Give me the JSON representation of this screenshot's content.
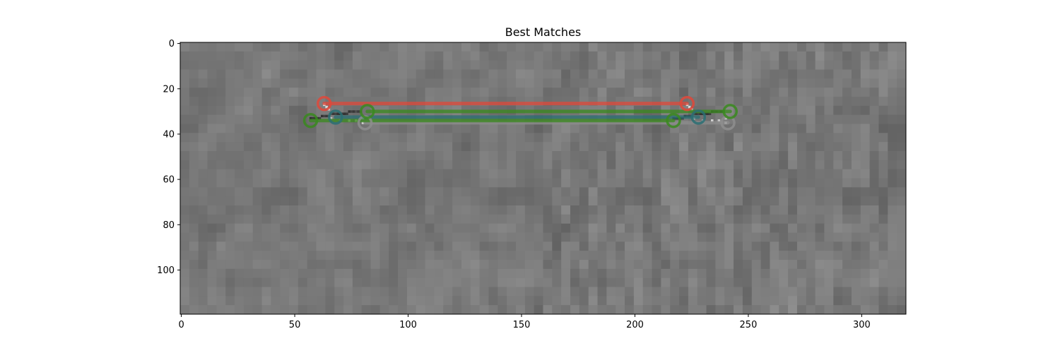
{
  "chart_data": {
    "type": "image",
    "title": "Best Matches",
    "xlabel": "",
    "ylabel": "",
    "xlim": [
      -0.5,
      319.5
    ],
    "ylim": [
      119.5,
      -0.5
    ],
    "y_inverted": true,
    "grid": false,
    "image": {
      "width": 320,
      "height": 120,
      "colormap": "grayscale",
      "background_gray_range": [
        95,
        145
      ],
      "split_x": 160
    },
    "x_ticks": [
      0,
      50,
      100,
      150,
      200,
      250,
      300
    ],
    "x_tick_labels": [
      "0",
      "50",
      "100",
      "150",
      "200",
      "250",
      "300"
    ],
    "y_ticks": [
      0,
      20,
      40,
      60,
      80,
      100
    ],
    "y_tick_labels": [
      "0",
      "20",
      "40",
      "60",
      "80",
      "100"
    ],
    "matches": [
      {
        "x1": 63,
        "y1": 26.5,
        "x2": 223,
        "y2": 26.5,
        "color": "#e0483a"
      },
      {
        "x1": 82,
        "y1": 30,
        "x2": 242,
        "y2": 30,
        "color": "#3a8a1e"
      },
      {
        "x1": 57,
        "y1": 34,
        "x2": 217,
        "y2": 34,
        "color": "#3a8a1e"
      },
      {
        "x1": 68,
        "y1": 32.5,
        "x2": 228,
        "y2": 32.5,
        "color": "#2a6f73"
      },
      {
        "x1": 81,
        "y1": 35,
        "x2": 241,
        "y2": 35,
        "color": "#8e8e8e"
      }
    ],
    "feature_marks": [
      {
        "x": 57,
        "y": 33,
        "value": 0.18
      },
      {
        "x": 58,
        "y": 33,
        "value": 0.22
      },
      {
        "x": 59,
        "y": 33,
        "value": 0.2
      },
      {
        "x": 60,
        "y": 33,
        "value": 0.18
      },
      {
        "x": 61,
        "y": 33,
        "value": 0.24
      },
      {
        "x": 62,
        "y": 32,
        "value": 0.2
      },
      {
        "x": 63,
        "y": 32,
        "value": 0.26
      },
      {
        "x": 64,
        "y": 32,
        "value": 0.22
      },
      {
        "x": 65,
        "y": 32,
        "value": 0.28
      },
      {
        "x": 66,
        "y": 31,
        "value": 0.3
      },
      {
        "x": 67,
        "y": 31,
        "value": 0.22
      },
      {
        "x": 68,
        "y": 31,
        "value": 0.26
      },
      {
        "x": 69,
        "y": 31,
        "value": 0.2
      },
      {
        "x": 70,
        "y": 31,
        "value": 0.18
      },
      {
        "x": 71,
        "y": 31,
        "value": 0.22
      },
      {
        "x": 72,
        "y": 31,
        "value": 0.2
      },
      {
        "x": 73,
        "y": 31,
        "value": 0.24
      },
      {
        "x": 74,
        "y": 30,
        "value": 0.2
      },
      {
        "x": 75,
        "y": 30,
        "value": 0.26
      },
      {
        "x": 76,
        "y": 30,
        "value": 0.22
      },
      {
        "x": 77,
        "y": 30,
        "value": 0.3
      },
      {
        "x": 78,
        "y": 30,
        "value": 0.24
      },
      {
        "x": 79,
        "y": 30,
        "value": 0.28
      },
      {
        "x": 63,
        "y": 27,
        "value": 0.9
      },
      {
        "x": 64,
        "y": 28,
        "value": 0.85
      },
      {
        "x": 65,
        "y": 29,
        "value": 0.8
      },
      {
        "x": 66,
        "y": 33,
        "value": 0.75
      },
      {
        "x": 70,
        "y": 34,
        "value": 0.7
      },
      {
        "x": 74,
        "y": 34,
        "value": 0.85
      },
      {
        "x": 77,
        "y": 34,
        "value": 0.8
      },
      {
        "x": 80,
        "y": 33,
        "value": 0.75
      },
      {
        "x": 80,
        "y": 35,
        "value": 0.82
      }
    ]
  }
}
